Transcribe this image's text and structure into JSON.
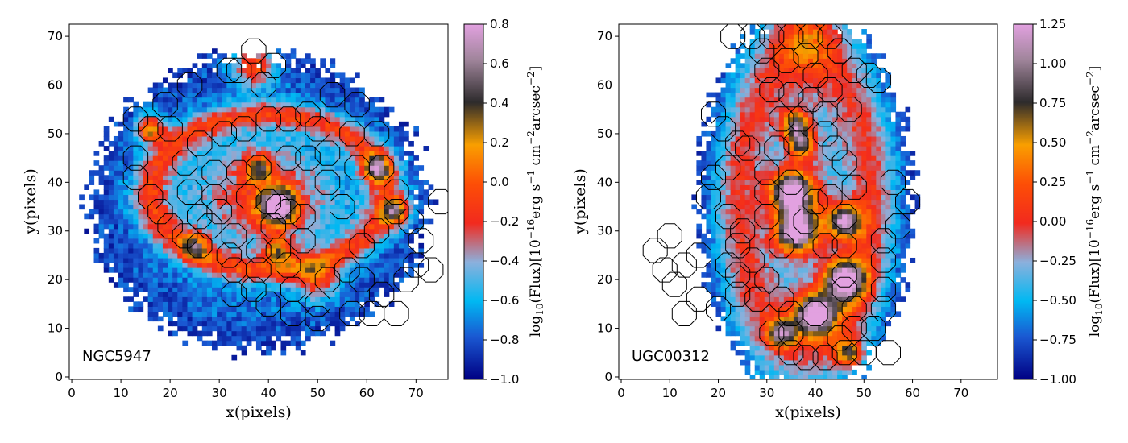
{
  "chart_data": [
    {
      "type": "heatmap",
      "galaxy_label": "NGC5947",
      "xlabel": "x(pixels)",
      "ylabel": "y(pixels)",
      "xlim": [
        -0.5,
        76.5
      ],
      "ylim": [
        -0.5,
        72.5
      ],
      "xticks": [
        "0",
        "10",
        "20",
        "30",
        "40",
        "50",
        "60",
        "70"
      ],
      "yticks": [
        "0",
        "10",
        "20",
        "30",
        "40",
        "50",
        "60",
        "70"
      ],
      "colorbar": {
        "label": "log10(Flux)[10^-16 erg s^-1 cm^-2 arcsec^-2]",
        "range": [
          -1.0,
          0.8
        ],
        "ticks": [
          "−1.0",
          "−0.8",
          "−0.6",
          "−0.4",
          "−0.2",
          "0.0",
          "0.2",
          "0.4",
          "0.6",
          "0.8"
        ]
      },
      "emission_model": {
        "disk": {
          "cx": 38,
          "cy": 36,
          "a": 34,
          "b": 30,
          "level": -0.85
        },
        "ring": {
          "cx": 40,
          "cy": 38,
          "rx": 24,
          "ry": 16,
          "width": 4.0,
          "level": 0.6
        },
        "blobs": [
          {
            "x": 42,
            "y": 35,
            "s": 2.5,
            "a": 1.5
          },
          {
            "x": 16,
            "y": 51,
            "s": 2.0,
            "a": 1.0
          },
          {
            "x": 62,
            "y": 43,
            "s": 2.0,
            "a": 1.0
          },
          {
            "x": 66,
            "y": 34,
            "s": 2.0,
            "a": 1.0
          },
          {
            "x": 38,
            "y": 43,
            "s": 2.0,
            "a": 0.8
          },
          {
            "x": 42,
            "y": 26,
            "s": 2.0,
            "a": 0.8
          },
          {
            "x": 25,
            "y": 27,
            "s": 2.0,
            "a": 0.7
          },
          {
            "x": 37,
            "y": 64,
            "s": 3.0,
            "a": 0.8
          },
          {
            "x": 50,
            "y": 20,
            "s": 3.0,
            "a": 0.6
          }
        ]
      },
      "regions": [
        [
          16,
          51
        ],
        [
          13,
          53
        ],
        [
          20,
          51
        ],
        [
          19,
          56
        ],
        [
          24,
          60
        ],
        [
          32,
          63
        ],
        [
          37,
          67
        ],
        [
          41,
          64
        ],
        [
          34,
          63
        ],
        [
          39,
          60
        ],
        [
          13,
          45
        ],
        [
          13,
          41
        ],
        [
          16,
          37
        ],
        [
          18,
          34
        ],
        [
          20,
          31
        ],
        [
          23,
          29
        ],
        [
          26,
          27
        ],
        [
          28,
          31
        ],
        [
          33,
          29
        ],
        [
          32,
          25
        ],
        [
          38,
          26
        ],
        [
          42,
          26
        ],
        [
          44,
          23
        ],
        [
          47,
          28
        ],
        [
          47,
          33
        ],
        [
          44,
          34
        ],
        [
          40,
          36
        ],
        [
          42,
          35
        ],
        [
          38,
          43
        ],
        [
          34,
          42
        ],
        [
          29,
          42
        ],
        [
          24,
          38
        ],
        [
          23,
          44
        ],
        [
          26,
          48
        ],
        [
          31,
          50
        ],
        [
          35,
          51
        ],
        [
          40,
          53
        ],
        [
          44,
          53
        ],
        [
          48,
          54
        ],
        [
          53,
          58
        ],
        [
          58,
          56
        ],
        [
          57,
          50
        ],
        [
          62,
          50
        ],
        [
          63,
          43
        ],
        [
          66,
          38
        ],
        [
          66,
          34
        ],
        [
          69,
          32
        ],
        [
          71,
          28
        ],
        [
          73,
          22
        ],
        [
          75,
          36
        ],
        [
          62,
          30
        ],
        [
          59,
          27
        ],
        [
          56,
          22
        ],
        [
          52,
          20
        ],
        [
          50,
          15
        ],
        [
          45,
          18
        ],
        [
          40,
          15
        ],
        [
          37,
          18
        ],
        [
          33,
          17
        ],
        [
          33,
          22
        ],
        [
          29,
          37
        ],
        [
          36,
          37
        ],
        [
          41,
          31
        ],
        [
          52,
          40
        ],
        [
          55,
          35
        ],
        [
          58,
          43
        ],
        [
          52,
          46
        ],
        [
          48,
          45
        ],
        [
          44,
          45
        ],
        [
          50,
          51
        ],
        [
          59,
          20
        ],
        [
          63,
          17
        ],
        [
          61,
          13
        ],
        [
          66,
          13
        ],
        [
          68,
          20
        ],
        [
          70,
          23
        ],
        [
          57,
          13
        ],
        [
          50,
          12
        ],
        [
          45,
          13
        ],
        [
          38,
          22
        ],
        [
          30,
          34
        ],
        [
          26,
          33
        ]
      ]
    },
    {
      "type": "heatmap",
      "galaxy_label": "UGC00312",
      "xlabel": "x(pixels)",
      "ylabel": "y(pixels)",
      "xlim": [
        -0.5,
        77.5
      ],
      "ylim": [
        -0.5,
        72.5
      ],
      "xticks": [
        "0",
        "10",
        "20",
        "30",
        "40",
        "50",
        "60",
        "70"
      ],
      "yticks": [
        "0",
        "10",
        "20",
        "30",
        "40",
        "50",
        "60",
        "70"
      ],
      "colorbar": {
        "label": "log10(Flux)[10^-16 erg s^-1 cm^-2 arcsec^-2]",
        "range": [
          -1.0,
          1.25
        ],
        "ticks": [
          "−1.00",
          "−0.75",
          "−0.50",
          "−0.25",
          "0.00",
          "0.25",
          "0.50",
          "0.75",
          "1.00",
          "1.25"
        ]
      },
      "emission_model": {
        "disk": {
          "cx": 38,
          "cy": 36,
          "a": 22,
          "b": 40,
          "level": -0.85
        },
        "ring": {
          "cx": 38,
          "cy": 36,
          "rx": 14,
          "ry": 30,
          "width": 5.0,
          "level": 0.7
        },
        "blobs": [
          {
            "x": 35,
            "y": 38,
            "s": 3.0,
            "a": 1.8
          },
          {
            "x": 36,
            "y": 30,
            "s": 3.0,
            "a": 1.8
          },
          {
            "x": 46,
            "y": 20,
            "s": 3.0,
            "a": 1.8
          },
          {
            "x": 46,
            "y": 32,
            "s": 2.5,
            "a": 1.6
          },
          {
            "x": 40,
            "y": 13,
            "s": 3.0,
            "a": 1.8
          },
          {
            "x": 36,
            "y": 52,
            "s": 2.0,
            "a": 1.3
          },
          {
            "x": 37,
            "y": 48,
            "s": 2.0,
            "a": 1.2
          },
          {
            "x": 33,
            "y": 9,
            "s": 2.0,
            "a": 1.2
          },
          {
            "x": 47,
            "y": 5,
            "s": 2.0,
            "a": 1.1
          },
          {
            "x": 38,
            "y": 70,
            "s": 5.0,
            "a": 0.6
          }
        ]
      },
      "regions": [
        [
          23,
          70
        ],
        [
          27,
          70
        ],
        [
          31,
          70
        ],
        [
          35,
          70
        ],
        [
          39,
          70
        ],
        [
          43,
          70
        ],
        [
          45,
          67
        ],
        [
          48,
          63
        ],
        [
          45,
          67
        ],
        [
          51,
          62
        ],
        [
          53,
          61
        ],
        [
          29,
          67
        ],
        [
          30,
          63
        ],
        [
          34,
          65
        ],
        [
          38,
          66
        ],
        [
          40,
          62
        ],
        [
          31,
          59
        ],
        [
          35,
          58
        ],
        [
          39,
          57
        ],
        [
          43,
          59
        ],
        [
          47,
          55
        ],
        [
          42,
          54
        ],
        [
          33,
          53
        ],
        [
          37,
          53
        ],
        [
          42,
          50
        ],
        [
          36,
          48
        ],
        [
          32,
          47
        ],
        [
          30,
          42
        ],
        [
          30,
          38
        ],
        [
          35,
          40
        ],
        [
          40,
          36
        ],
        [
          43,
          37
        ],
        [
          46,
          44
        ],
        [
          44,
          47
        ],
        [
          48,
          39
        ],
        [
          46,
          33
        ],
        [
          46,
          27
        ],
        [
          46,
          21
        ],
        [
          46,
          18
        ],
        [
          48,
          14
        ],
        [
          48,
          10
        ],
        [
          45,
          8
        ],
        [
          40,
          13
        ],
        [
          35,
          13
        ],
        [
          35,
          9
        ],
        [
          31,
          9
        ],
        [
          35,
          5
        ],
        [
          38,
          4
        ],
        [
          42,
          4
        ],
        [
          46,
          5
        ],
        [
          50,
          5
        ],
        [
          52,
          10
        ],
        [
          54,
          14
        ],
        [
          54,
          18
        ],
        [
          54,
          24
        ],
        [
          54,
          28
        ],
        [
          57,
          31
        ],
        [
          59,
          36
        ],
        [
          56,
          40
        ],
        [
          55,
          5
        ],
        [
          19,
          54
        ],
        [
          21,
          51
        ],
        [
          24,
          48
        ],
        [
          26,
          47
        ],
        [
          22,
          43
        ],
        [
          19,
          41
        ],
        [
          18,
          37
        ],
        [
          22,
          33
        ],
        [
          25,
          30
        ],
        [
          24,
          27
        ],
        [
          22,
          23
        ],
        [
          24,
          21
        ],
        [
          27,
          24
        ],
        [
          30,
          20
        ],
        [
          33,
          16
        ],
        [
          28,
          16
        ],
        [
          24,
          17
        ],
        [
          20,
          14
        ],
        [
          16,
          16
        ],
        [
          13,
          13
        ],
        [
          11,
          19
        ],
        [
          9,
          22
        ],
        [
          13,
          23
        ],
        [
          7,
          26
        ],
        [
          10,
          29
        ],
        [
          16,
          25
        ],
        [
          30,
          33
        ],
        [
          33,
          27
        ],
        [
          38,
          32
        ],
        [
          42,
          27
        ]
      ]
    }
  ]
}
